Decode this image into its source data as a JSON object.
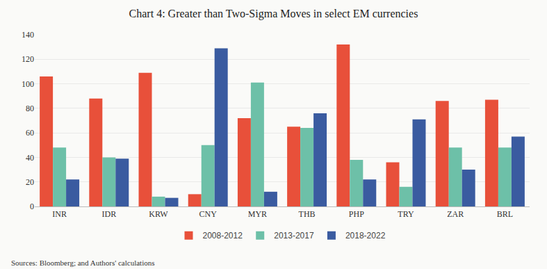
{
  "chart_data": {
    "type": "bar",
    "title": "Chart 4: Greater than Two-Sigma Moves in select EM currencies",
    "categories": [
      "INR",
      "IDR",
      "KRW",
      "CNY",
      "MYR",
      "THB",
      "PHP",
      "TRY",
      "ZAR",
      "BRL"
    ],
    "series": [
      {
        "name": "2008-2012",
        "color": "#E8503A",
        "values": [
          106,
          88,
          109,
          10,
          72,
          65,
          132,
          36,
          86,
          87
        ]
      },
      {
        "name": "2013-2017",
        "color": "#6DC0A8",
        "values": [
          48,
          40,
          8,
          50,
          101,
          64,
          38,
          16,
          48,
          48
        ]
      },
      {
        "name": "2018-2022",
        "color": "#3A5BA0",
        "values": [
          22,
          39,
          7,
          129,
          12,
          76,
          22,
          71,
          30,
          57
        ]
      }
    ],
    "ylim": [
      0,
      140
    ],
    "yticks": [
      0,
      20,
      40,
      60,
      80,
      100,
      120,
      140
    ],
    "grid": true,
    "legend": "bottom",
    "annotations": [
      "Sources: Bloomberg; and Authors' calculations"
    ]
  }
}
